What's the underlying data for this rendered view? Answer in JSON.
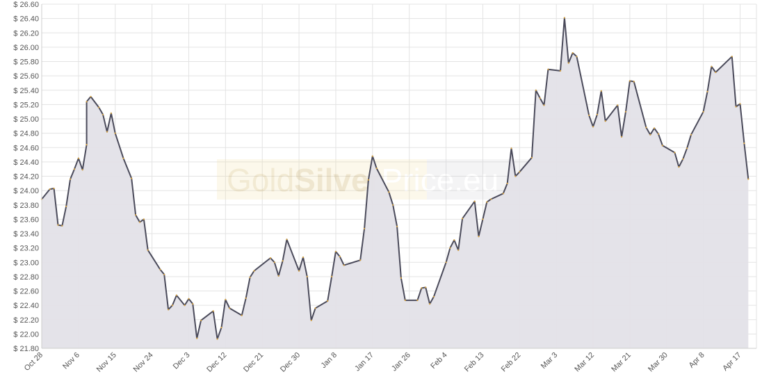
{
  "watermark": {
    "part1": "Gold",
    "part2": "Silver",
    "part3": "Price",
    "part4": ".eu"
  },
  "colors": {
    "line": "#4a4a5a",
    "area": "#e3e2e8",
    "marker": "#d9a441",
    "grid": "#e3e3e3",
    "watermark_gold": "#d4b24a",
    "watermark_gray": "#8a8a8a"
  },
  "chart_data": {
    "type": "area",
    "title": "",
    "xlabel": "",
    "ylabel": "",
    "ylim": [
      21.8,
      26.6
    ],
    "xlim": [
      "2020-10-28",
      "2021-04-21"
    ],
    "grid": true,
    "y_ticks": [
      "$ 21.80",
      "$ 22.00",
      "$ 22.20",
      "$ 22.40",
      "$ 22.60",
      "$ 22.80",
      "$ 23.00",
      "$ 23.20",
      "$ 23.40",
      "$ 23.60",
      "$ 23.80",
      "$ 24.00",
      "$ 24.20",
      "$ 24.40",
      "$ 24.60",
      "$ 24.80",
      "$ 25.00",
      "$ 25.20",
      "$ 25.40",
      "$ 25.60",
      "$ 25.80",
      "$ 26.00",
      "$ 26.20",
      "$ 26.40",
      "$ 26.60"
    ],
    "x_ticks": [
      {
        "date": "2020-10-28",
        "label": "Oct 28"
      },
      {
        "date": "2020-11-06",
        "label": "Nov 6"
      },
      {
        "date": "2020-11-15",
        "label": "Nov 15"
      },
      {
        "date": "2020-11-24",
        "label": "Nov 24"
      },
      {
        "date": "2020-12-03",
        "label": "Dec 3"
      },
      {
        "date": "2020-12-12",
        "label": "Dec 12"
      },
      {
        "date": "2020-12-21",
        "label": "Dec 21"
      },
      {
        "date": "2020-12-30",
        "label": "Dec 30"
      },
      {
        "date": "2021-01-08",
        "label": "Jan 8"
      },
      {
        "date": "2021-01-17",
        "label": "Jan 17"
      },
      {
        "date": "2021-01-26",
        "label": "Jan 26"
      },
      {
        "date": "2021-02-04",
        "label": "Feb 4"
      },
      {
        "date": "2021-02-13",
        "label": "Feb 13"
      },
      {
        "date": "2021-02-22",
        "label": "Feb 22"
      },
      {
        "date": "2021-03-03",
        "label": "Mar 3"
      },
      {
        "date": "2021-03-12",
        "label": "Mar 12"
      },
      {
        "date": "2021-03-21",
        "label": "Mar 21"
      },
      {
        "date": "2021-03-30",
        "label": "Mar 30"
      },
      {
        "date": "2021-04-08",
        "label": "Apr 8"
      },
      {
        "date": "2021-04-17",
        "label": "Apr 17"
      }
    ],
    "series": [
      {
        "points": [
          [
            "2020-10-28",
            23.88
          ],
          [
            "2020-10-30",
            24.02
          ],
          [
            "2020-10-31",
            24.03
          ],
          [
            "2020-11-01",
            23.52
          ],
          [
            "2020-11-02",
            23.51
          ],
          [
            "2020-11-03",
            23.78
          ],
          [
            "2020-11-04",
            24.16
          ],
          [
            "2020-11-05",
            24.3
          ],
          [
            "2020-11-06",
            24.45
          ],
          [
            "2020-11-07",
            24.29
          ],
          [
            "2020-11-08",
            24.64
          ],
          [
            "2020-11-08",
            25.24
          ],
          [
            "2020-11-09",
            25.31
          ],
          [
            "2020-11-11",
            25.16
          ],
          [
            "2020-11-12",
            25.06
          ],
          [
            "2020-11-13",
            24.82
          ],
          [
            "2020-11-14",
            25.08
          ],
          [
            "2020-11-15",
            24.8
          ],
          [
            "2020-11-17",
            24.45
          ],
          [
            "2020-11-19",
            24.17
          ],
          [
            "2020-11-20",
            23.66
          ],
          [
            "2020-11-21",
            23.56
          ],
          [
            "2020-11-22",
            23.6
          ],
          [
            "2020-11-23",
            23.17
          ],
          [
            "2020-11-26",
            22.9
          ],
          [
            "2020-11-27",
            22.83
          ],
          [
            "2020-11-28",
            22.34
          ],
          [
            "2020-11-29",
            22.4
          ],
          [
            "2020-11-30",
            22.54
          ],
          [
            "2020-12-02",
            22.4
          ],
          [
            "2020-12-03",
            22.49
          ],
          [
            "2020-12-04",
            22.42
          ],
          [
            "2020-12-05",
            21.94
          ],
          [
            "2020-12-06",
            22.19
          ],
          [
            "2020-12-09",
            22.32
          ],
          [
            "2020-12-10",
            21.93
          ],
          [
            "2020-12-11",
            22.09
          ],
          [
            "2020-12-12",
            22.48
          ],
          [
            "2020-12-13",
            22.36
          ],
          [
            "2020-12-16",
            22.26
          ],
          [
            "2020-12-17",
            22.5
          ],
          [
            "2020-12-18",
            22.79
          ],
          [
            "2020-12-19",
            22.88
          ],
          [
            "2020-12-23",
            23.06
          ],
          [
            "2020-12-24",
            23.0
          ],
          [
            "2020-12-25",
            22.81
          ],
          [
            "2020-12-26",
            23.02
          ],
          [
            "2020-12-27",
            23.32
          ],
          [
            "2020-12-30",
            22.88
          ],
          [
            "2020-12-31",
            23.07
          ],
          [
            "2021-01-01",
            22.8
          ],
          [
            "2021-01-02",
            22.19
          ],
          [
            "2021-01-03",
            22.36
          ],
          [
            "2021-01-06",
            22.46
          ],
          [
            "2021-01-07",
            22.8
          ],
          [
            "2021-01-08",
            23.15
          ],
          [
            "2021-01-09",
            23.08
          ],
          [
            "2021-01-10",
            22.96
          ],
          [
            "2021-01-14",
            23.03
          ],
          [
            "2021-01-15",
            23.47
          ],
          [
            "2021-01-16",
            24.15
          ],
          [
            "2021-01-17",
            24.48
          ],
          [
            "2021-01-18",
            24.31
          ],
          [
            "2021-01-21",
            23.98
          ],
          [
            "2021-01-22",
            23.8
          ],
          [
            "2021-01-23",
            23.5
          ],
          [
            "2021-01-24",
            22.78
          ],
          [
            "2021-01-25",
            22.47
          ],
          [
            "2021-01-28",
            22.47
          ],
          [
            "2021-01-29",
            22.64
          ],
          [
            "2021-01-30",
            22.65
          ],
          [
            "2021-01-31",
            22.42
          ],
          [
            "2021-02-01",
            22.52
          ],
          [
            "2021-02-04",
            23.0
          ],
          [
            "2021-02-05",
            23.2
          ],
          [
            "2021-02-06",
            23.31
          ],
          [
            "2021-02-07",
            23.17
          ],
          [
            "2021-02-08",
            23.61
          ],
          [
            "2021-02-11",
            23.85
          ],
          [
            "2021-02-12",
            23.36
          ],
          [
            "2021-02-13",
            23.6
          ],
          [
            "2021-02-14",
            23.84
          ],
          [
            "2021-02-15",
            23.88
          ],
          [
            "2021-02-18",
            23.96
          ],
          [
            "2021-02-19",
            24.1
          ],
          [
            "2021-02-20",
            24.59
          ],
          [
            "2021-02-21",
            24.2
          ],
          [
            "2021-02-22",
            24.26
          ],
          [
            "2021-02-25",
            24.46
          ],
          [
            "2021-02-26",
            25.4
          ],
          [
            "2021-02-27",
            25.29
          ],
          [
            "2021-02-28",
            25.19
          ],
          [
            "2021-03-01",
            25.69
          ],
          [
            "2021-03-04",
            25.67
          ],
          [
            "2021-03-05",
            26.41
          ],
          [
            "2021-03-06",
            25.78
          ],
          [
            "2021-03-07",
            25.92
          ],
          [
            "2021-03-08",
            25.87
          ],
          [
            "2021-03-11",
            25.05
          ],
          [
            "2021-03-12",
            24.89
          ],
          [
            "2021-03-13",
            25.06
          ],
          [
            "2021-03-14",
            25.39
          ],
          [
            "2021-03-15",
            24.97
          ],
          [
            "2021-03-18",
            25.19
          ],
          [
            "2021-03-19",
            24.75
          ],
          [
            "2021-03-20",
            25.1
          ],
          [
            "2021-03-21",
            25.53
          ],
          [
            "2021-03-22",
            25.52
          ],
          [
            "2021-03-25",
            24.88
          ],
          [
            "2021-03-26",
            24.78
          ],
          [
            "2021-03-27",
            24.87
          ],
          [
            "2021-03-28",
            24.79
          ],
          [
            "2021-03-29",
            24.63
          ],
          [
            "2021-04-01",
            24.53
          ],
          [
            "2021-04-02",
            24.33
          ],
          [
            "2021-04-03",
            24.44
          ],
          [
            "2021-04-04",
            24.59
          ],
          [
            "2021-04-05",
            24.78
          ],
          [
            "2021-04-08",
            25.1
          ],
          [
            "2021-04-09",
            25.38
          ],
          [
            "2021-04-10",
            25.73
          ],
          [
            "2021-04-11",
            25.65
          ],
          [
            "2021-04-15",
            25.87
          ],
          [
            "2021-04-16",
            25.17
          ],
          [
            "2021-04-17",
            25.21
          ],
          [
            "2021-04-18",
            24.66
          ],
          [
            "2021-04-19",
            24.16
          ]
        ]
      }
    ]
  }
}
